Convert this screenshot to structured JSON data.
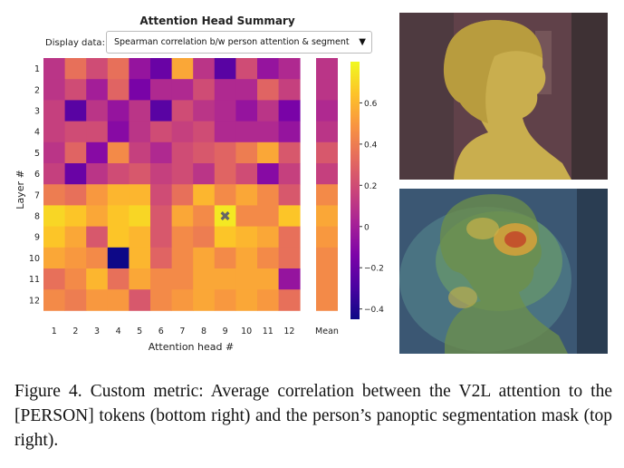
{
  "panel": {
    "title": "Attention Head Summary",
    "display_label": "Display data:",
    "dropdown_value": "Spearman correlation b/w person attention & segment",
    "dropdown_arrow": "▼",
    "ylabel": "Layer #",
    "xlabel": "Attention head #",
    "mean_label": "Mean",
    "marker": "✖"
  },
  "chart_data": {
    "type": "heatmap",
    "title": "Attention Head Summary",
    "xlabel": "Attention head #",
    "ylabel": "Layer #",
    "x_ticks": [
      "1",
      "2",
      "3",
      "4",
      "5",
      "6",
      "7",
      "8",
      "9",
      "10",
      "11",
      "12"
    ],
    "y_ticks": [
      "1",
      "2",
      "3",
      "4",
      "5",
      "6",
      "7",
      "8",
      "9",
      "10",
      "11",
      "12"
    ],
    "colorbar_ticks": [
      "0.6",
      "0.4",
      "0.2",
      "0",
      "−0.2",
      "−0.4"
    ],
    "colorbar_values": [
      0.6,
      0.4,
      0.2,
      0,
      -0.2,
      -0.4
    ],
    "vmin": -0.45,
    "vmax": 0.8,
    "marked_cell": {
      "layer": 8,
      "head": 9
    },
    "values": [
      [
        0.1,
        0.35,
        0.2,
        0.35,
        -0.05,
        -0.2,
        0.55,
        0.1,
        -0.25,
        0.2,
        -0.05,
        0.05
      ],
      [
        0.1,
        0.2,
        0.0,
        0.3,
        -0.15,
        0.05,
        0.05,
        0.2,
        0.05,
        0.05,
        0.3,
        0.15
      ],
      [
        0.15,
        -0.25,
        0.1,
        -0.05,
        0.1,
        -0.25,
        0.2,
        0.1,
        0.05,
        -0.05,
        0.1,
        -0.15
      ],
      [
        0.15,
        0.2,
        0.2,
        -0.1,
        0.1,
        0.2,
        0.15,
        0.2,
        0.05,
        0.05,
        0.05,
        -0.05
      ],
      [
        0.1,
        0.3,
        -0.1,
        0.45,
        0.15,
        0.05,
        0.2,
        0.25,
        0.3,
        0.4,
        0.55,
        0.25
      ],
      [
        0.15,
        -0.2,
        0.1,
        0.2,
        0.25,
        0.15,
        0.2,
        0.1,
        0.3,
        0.2,
        -0.1,
        0.15
      ],
      [
        0.4,
        0.35,
        0.5,
        0.6,
        0.6,
        0.2,
        0.35,
        0.6,
        0.45,
        0.55,
        0.45,
        0.25
      ],
      [
        0.7,
        0.65,
        0.55,
        0.65,
        0.7,
        0.25,
        0.55,
        0.45,
        0.75,
        0.45,
        0.45,
        0.65
      ],
      [
        0.65,
        0.55,
        0.25,
        0.65,
        0.6,
        0.25,
        0.45,
        0.4,
        0.65,
        0.6,
        0.55,
        0.35
      ],
      [
        0.55,
        0.5,
        0.45,
        -0.45,
        0.6,
        0.3,
        0.45,
        0.55,
        0.45,
        0.55,
        0.45,
        0.35
      ],
      [
        0.35,
        0.45,
        0.6,
        0.35,
        0.55,
        0.45,
        0.45,
        0.55,
        0.55,
        0.55,
        0.55,
        -0.05
      ],
      [
        0.45,
        0.4,
        0.5,
        0.5,
        0.25,
        0.45,
        0.5,
        0.55,
        0.5,
        0.55,
        0.5,
        0.35
      ]
    ],
    "mean_values": [
      0.1,
      0.1,
      0.05,
      0.1,
      0.25,
      0.15,
      0.45,
      0.55,
      0.5,
      0.45,
      0.45,
      0.45
    ]
  },
  "caption": {
    "text": "Figure 4.  Custom metric:  Average correlation between the V2L attention to the [PERSON] tokens (bottom right) and the person’s panoptic segmentation mask (top right)."
  }
}
